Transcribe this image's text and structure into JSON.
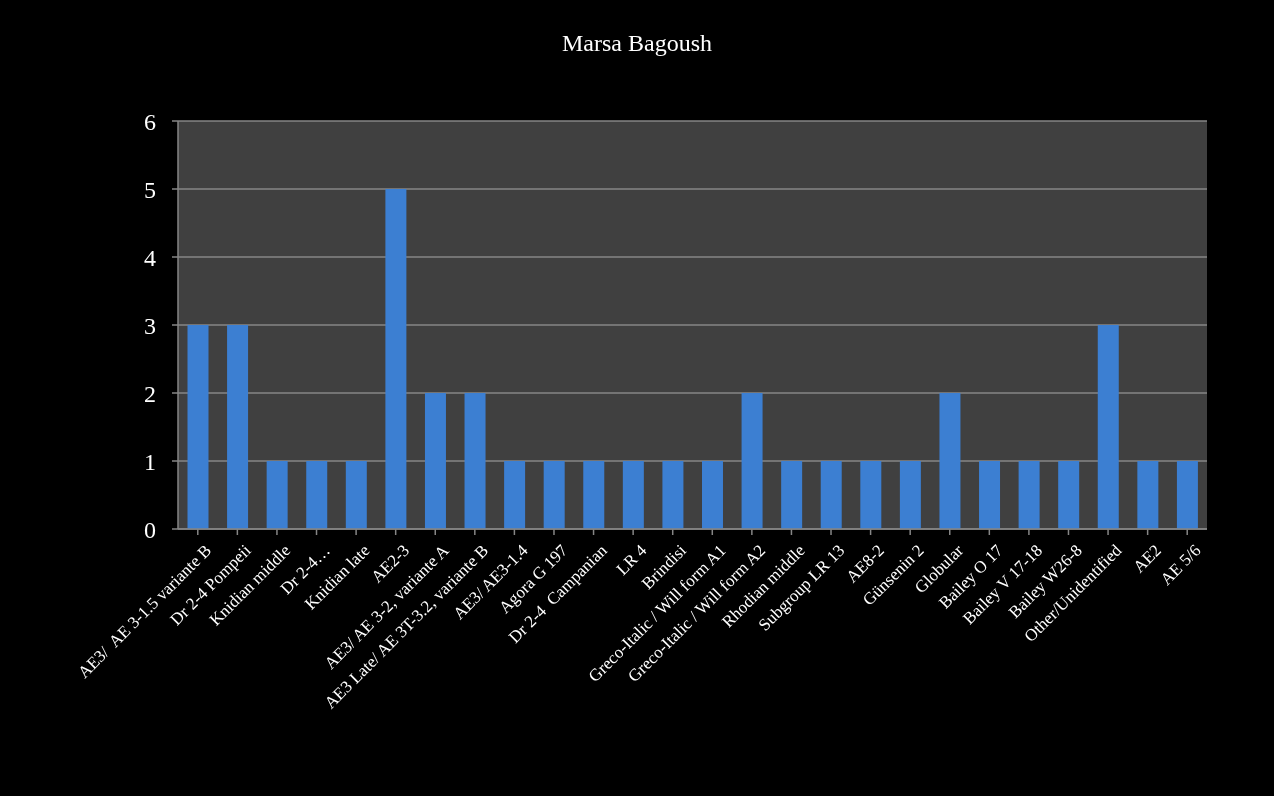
{
  "chart_data": {
    "type": "bar",
    "title": "Marsa Bagoush",
    "categories": [
      "AE3/  AE 3-1.5 variante B",
      "Dr 2-4 Pompeii",
      "Knidian middle",
      "Dr 2-4…",
      "Knidian late",
      "AE2-3",
      "AE3/ AE 3-2, variante A",
      "AE3 Late/ AE 3T-3.2, variante B",
      "AE3/ AE3-1.4",
      "Agora G 197",
      "Dr 2-4  Campanian",
      "LR 4",
      "Brindisi",
      "Greco-Italic / Will form A1",
      "Greco-Italic / Will form A2",
      "Rhodian middle",
      "Subgroup LR 13",
      "AE8-2",
      "Günsenin 2",
      "Globular",
      "Bailey O 17",
      "Bailey V 17-18",
      "Bailey W26-8",
      "Other/Unidentified",
      "AE2",
      "AE 5/6"
    ],
    "values": [
      3,
      3,
      1,
      1,
      1,
      5,
      2,
      2,
      1,
      1,
      1,
      1,
      1,
      1,
      2,
      1,
      1,
      1,
      1,
      2,
      1,
      1,
      1,
      3,
      1,
      1
    ],
    "color": "#3c7fd2",
    "ylim": [
      0,
      6
    ],
    "yticks": [
      0,
      1,
      2,
      3,
      4,
      5,
      6
    ],
    "grid": "y"
  }
}
